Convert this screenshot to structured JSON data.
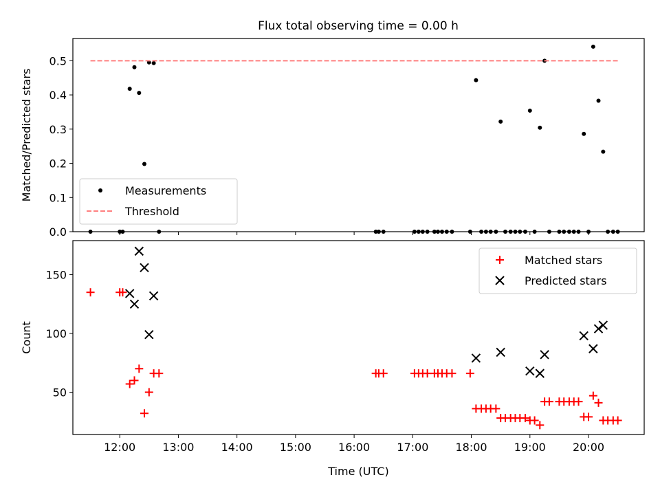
{
  "title": "Flux total observing time = 0.00 h",
  "chart_data": [
    {
      "type": "scatter",
      "ylabel": "Matched/Predicted stars",
      "xlim": [
        11.2,
        20.95
      ],
      "ylim": [
        0,
        0.565
      ],
      "yticks": [
        0.0,
        0.1,
        0.2,
        0.3,
        0.4,
        0.5
      ],
      "ytick_labels": [
        "0.0",
        "0.1",
        "0.2",
        "0.3",
        "0.4",
        "0.5"
      ],
      "legend_position": "lower-left",
      "series": [
        {
          "name": "Measurements",
          "marker": "dot",
          "color": "#000000",
          "x": [
            11.5,
            12.0,
            12.05,
            12.17,
            12.25,
            12.33,
            12.42,
            12.5,
            12.58,
            12.67,
            16.37,
            16.42,
            16.5,
            17.03,
            17.1,
            17.17,
            17.25,
            17.37,
            17.43,
            17.5,
            17.58,
            17.67,
            17.98,
            18.08,
            18.17,
            18.25,
            18.33,
            18.42,
            18.5,
            18.58,
            18.67,
            18.75,
            18.83,
            18.92,
            19.0,
            19.08,
            19.17,
            19.25,
            19.33,
            19.5,
            19.58,
            19.67,
            19.75,
            19.83,
            19.92,
            20.0,
            20.08,
            20.17,
            20.25,
            20.33,
            20.42,
            20.5
          ],
          "y": [
            0.0,
            0.0,
            0.0,
            0.418,
            0.481,
            0.406,
            0.198,
            0.495,
            0.493,
            0.0,
            0.0,
            0.0,
            0.0,
            0.0,
            0.0,
            0.0,
            0.0,
            0.0,
            0.0,
            0.0,
            0.0,
            0.0,
            0.0,
            0.443,
            0.0,
            0.0,
            0.0,
            0.0,
            0.322,
            0.0,
            0.0,
            0.0,
            0.0,
            0.0,
            0.354,
            0.0,
            0.304,
            0.5,
            0.0,
            0.0,
            0.0,
            0.0,
            0.0,
            0.0,
            0.286,
            0.0,
            0.541,
            0.383,
            0.234,
            0.0,
            0.0,
            0.0
          ]
        },
        {
          "name": "Threshold",
          "style": "dashed",
          "color": "#ff7f7f",
          "x": [
            11.5,
            20.5
          ],
          "y": [
            0.5,
            0.5
          ]
        }
      ]
    },
    {
      "type": "scatter",
      "ylabel": "Count",
      "xlabel": "Time (UTC)",
      "xlim": [
        11.2,
        20.95
      ],
      "ylim": [
        14,
        179
      ],
      "yticks": [
        50,
        100,
        150
      ],
      "ytick_labels": [
        "50",
        "100",
        "150"
      ],
      "xticks": [
        12,
        13,
        14,
        15,
        16,
        17,
        18,
        19,
        20
      ],
      "xtick_labels": [
        "12:00",
        "13:00",
        "14:00",
        "15:00",
        "16:00",
        "17:00",
        "18:00",
        "19:00",
        "20:00"
      ],
      "legend_position": "top-right",
      "series": [
        {
          "name": "Matched stars",
          "marker": "plus",
          "color": "#ff0000",
          "x": [
            11.5,
            12.0,
            12.05,
            12.17,
            12.25,
            12.33,
            12.42,
            12.5,
            12.58,
            12.67,
            16.37,
            16.42,
            16.5,
            17.03,
            17.1,
            17.17,
            17.25,
            17.37,
            17.43,
            17.5,
            17.58,
            17.67,
            17.98,
            18.08,
            18.17,
            18.25,
            18.33,
            18.42,
            18.5,
            18.58,
            18.67,
            18.75,
            18.83,
            18.92,
            19.0,
            19.08,
            19.17,
            19.25,
            19.33,
            19.5,
            19.58,
            19.67,
            19.75,
            19.83,
            19.92,
            20.0,
            20.08,
            20.17,
            20.25,
            20.33,
            20.42,
            20.5
          ],
          "y": [
            135,
            135,
            135,
            57,
            60,
            70,
            32,
            50,
            66,
            66,
            66,
            66,
            66,
            66,
            66,
            66,
            66,
            66,
            66,
            66,
            66,
            66,
            66,
            36,
            36,
            36,
            36,
            36,
            28,
            28,
            28,
            28,
            28,
            28,
            26,
            26,
            22,
            42,
            42,
            42,
            42,
            42,
            42,
            42,
            29,
            29,
            47,
            41,
            26,
            26,
            26,
            26
          ]
        },
        {
          "name": "Predicted stars",
          "marker": "x",
          "color": "#000000",
          "x": [
            12.17,
            12.25,
            12.33,
            12.42,
            12.5,
            12.58,
            18.08,
            18.5,
            19.0,
            19.17,
            19.25,
            19.92,
            20.08,
            20.17,
            20.25
          ],
          "y": [
            134,
            125,
            170,
            156,
            99,
            132,
            79,
            84,
            68,
            66,
            82,
            98,
            87,
            104,
            107
          ]
        }
      ]
    }
  ]
}
